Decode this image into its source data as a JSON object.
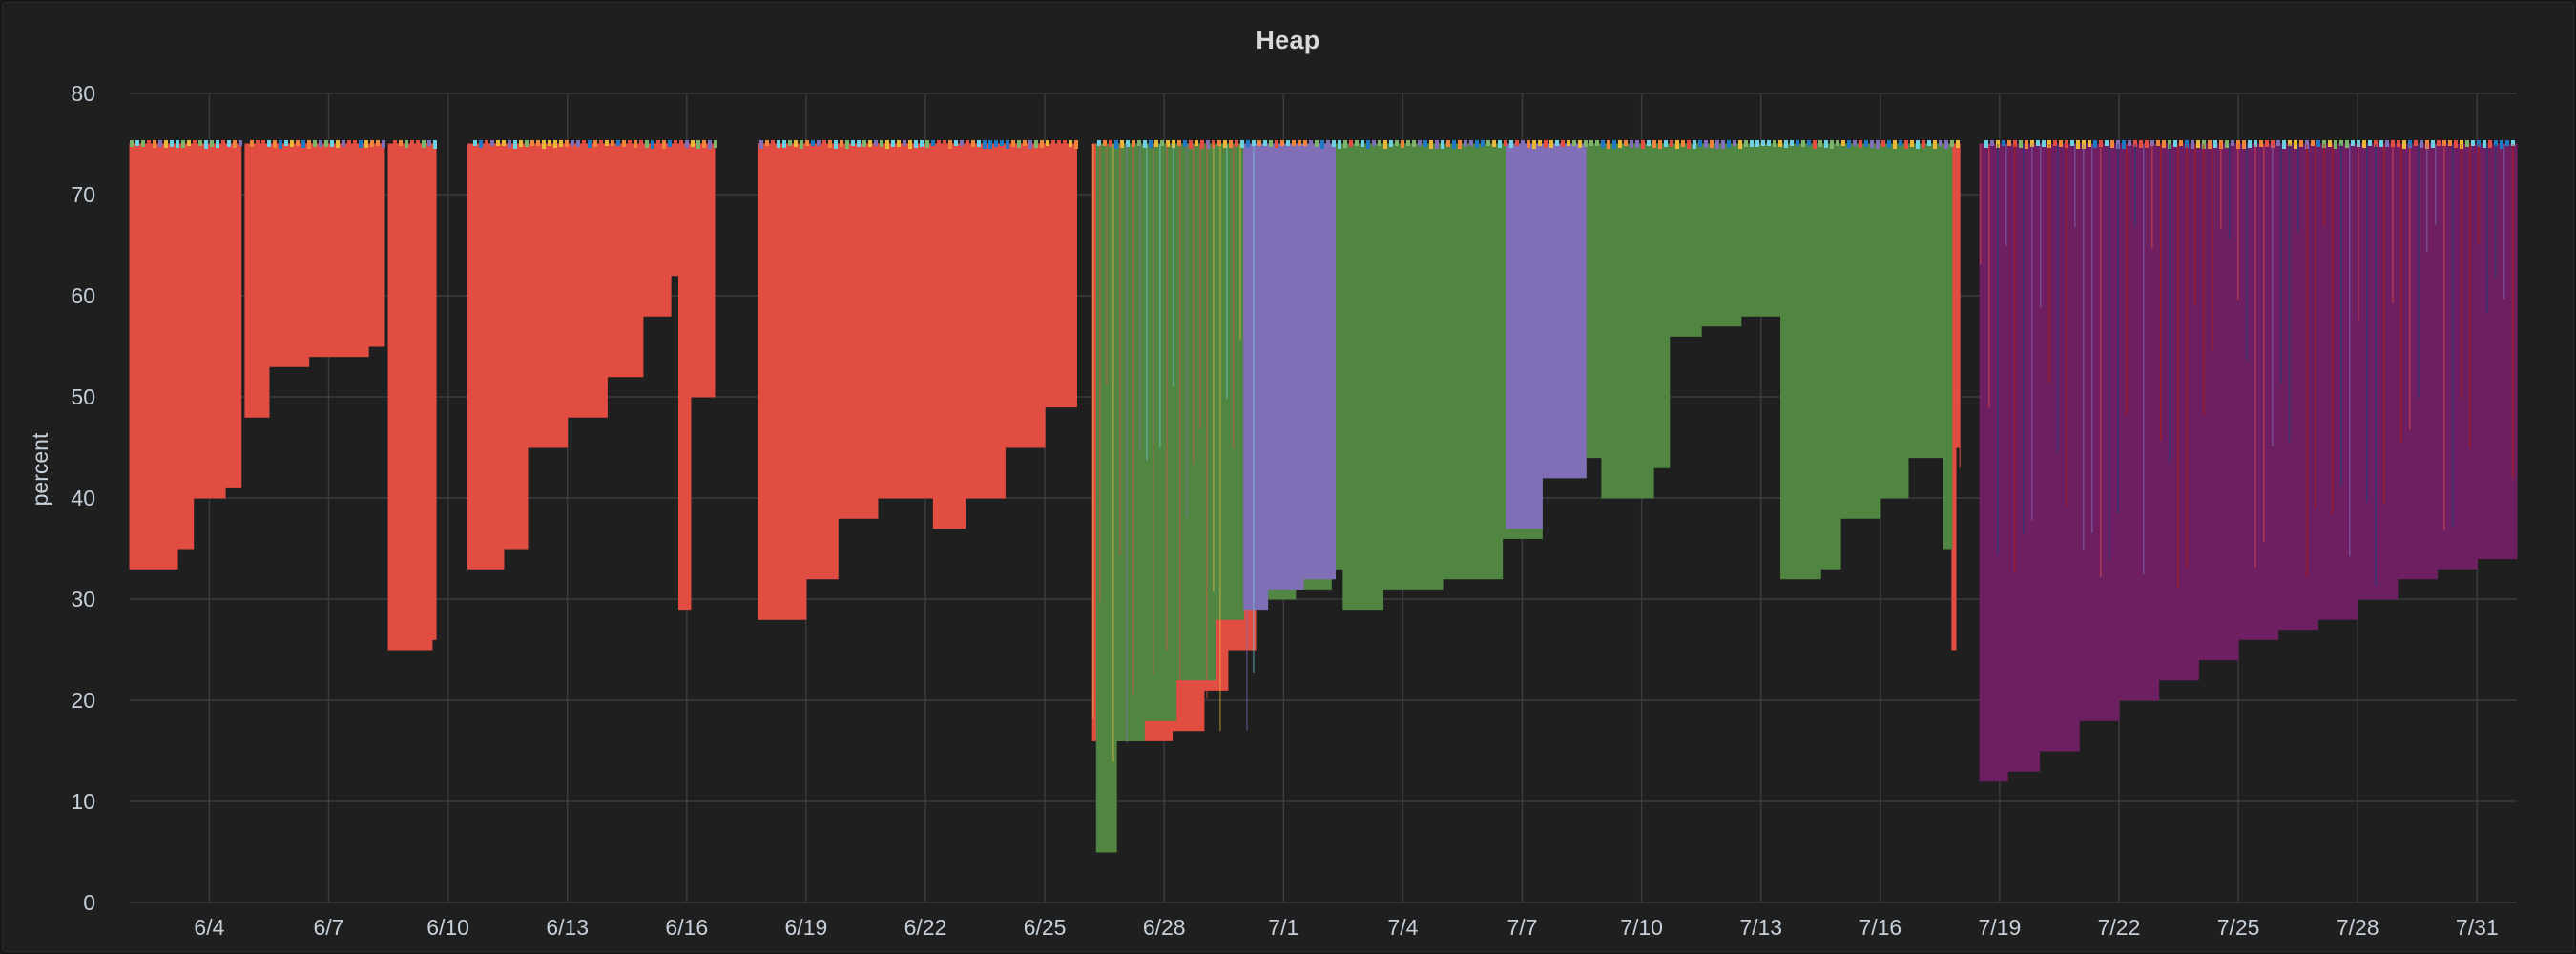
{
  "panel": {
    "title": "Heap"
  },
  "colors": {
    "background": "#1f1f20",
    "grid": "#3b3b3e",
    "text": "#c7d0d9",
    "red": "#e24d42",
    "green": "#508642",
    "purple": "#6d1f62",
    "violet": "#806eb7",
    "cyan": "#6ed0e0",
    "yellow": "#eab839",
    "orange": "#ef843c",
    "lightgreen": "#7eb26d",
    "blue": "#1f78c1",
    "darkblue": "#0a437c",
    "darkred": "#bf1b00"
  },
  "chart_data": {
    "type": "area",
    "title": "Heap",
    "xlabel": "",
    "ylabel": "percent",
    "ylim": [
      0,
      80
    ],
    "xlim": [
      "6/2",
      "8/1"
    ],
    "y_ticks": [
      0,
      10,
      20,
      30,
      40,
      50,
      60,
      70,
      80
    ],
    "x_ticks": [
      "6/4",
      "6/7",
      "6/10",
      "6/13",
      "6/16",
      "6/19",
      "6/22",
      "6/25",
      "6/28",
      "7/1",
      "7/4",
      "7/7",
      "7/10",
      "7/13",
      "7/16",
      "7/19",
      "7/22",
      "7/25",
      "7/28",
      "7/31"
    ],
    "grid": true,
    "legend": "none",
    "top_value": 75,
    "series": [
      {
        "color_key": "red",
        "segments": [
          {
            "points": [
              [
                "6/2.0",
                33
              ],
              [
                "6/3.2",
                35
              ],
              [
                "6/3.6",
                40
              ],
              [
                "6/4.4",
                41
              ],
              [
                "6/4.8",
                48
              ]
            ]
          },
          {
            "points": [
              [
                "6/4.9",
                48
              ],
              [
                "6/5.5",
                53
              ],
              [
                "6/6.5",
                54
              ],
              [
                "6/8.0",
                55
              ],
              [
                "6/8.4",
                55
              ]
            ]
          },
          {
            "points": [
              [
                "6/8.5",
                25
              ],
              [
                "6/9.6",
                26
              ],
              [
                "6/9.7",
                70
              ]
            ]
          },
          {
            "points": [
              [
                "6/10.5",
                33
              ],
              [
                "6/11.4",
                35
              ],
              [
                "6/12.0",
                45
              ],
              [
                "6/13.0",
                48
              ],
              [
                "6/14.0",
                52
              ],
              [
                "6/14.9",
                58
              ],
              [
                "6/15.6",
                62
              ],
              [
                "6/15.8",
                29
              ],
              [
                "6/16.1",
                50
              ],
              [
                "6/16.7",
                60
              ]
            ]
          },
          {
            "points": [
              [
                "6/17.8",
                28
              ],
              [
                "6/19.0",
                32
              ],
              [
                "6/19.8",
                38
              ],
              [
                "6/20.8",
                40
              ],
              [
                "6/21.7",
                40
              ],
              [
                "6/22.2",
                37
              ],
              [
                "6/23.0",
                40
              ],
              [
                "6/24.0",
                45
              ],
              [
                "6/25.0",
                49
              ],
              [
                "6/25.8",
                52
              ]
            ]
          },
          {
            "points": [
              [
                "6/26.2",
                16
              ],
              [
                "6/27.2",
                16
              ],
              [
                "6/28.2",
                17
              ],
              [
                "6/29.0",
                21
              ],
              [
                "6/29.6",
                25
              ],
              [
                "6/30.3",
                29
              ]
            ]
          },
          {
            "points": [
              [
                "7/17.8",
                25
              ],
              [
                "7/17.9",
                45
              ],
              [
                "7/18.0",
                43
              ]
            ]
          }
        ]
      },
      {
        "color_key": "green",
        "segments": [
          {
            "points": [
              [
                "6/26.3",
                5
              ],
              [
                "6/26.8",
                16
              ],
              [
                "6/27.5",
                18
              ],
              [
                "6/28.3",
                22
              ],
              [
                "6/29.3",
                28
              ],
              [
                "6/30.0",
                30
              ],
              [
                "7/1.3",
                31
              ],
              [
                "7/2.2",
                33
              ],
              [
                "7/2.5",
                29
              ],
              [
                "7/3.5",
                31
              ],
              [
                "7/5.0",
                32
              ],
              [
                "7/6.5",
                36
              ],
              [
                "7/7.5",
                42
              ],
              [
                "7/8.6",
                44
              ],
              [
                "7/9.0",
                40
              ],
              [
                "7/10.3",
                43
              ],
              [
                "7/10.7",
                56
              ],
              [
                "7/11.5",
                57
              ],
              [
                "7/12.5",
                58
              ],
              [
                "7/13.3",
                58
              ],
              [
                "7/13.5",
                32
              ],
              [
                "7/14.5",
                33
              ],
              [
                "7/15.0",
                38
              ],
              [
                "7/16.0",
                40
              ],
              [
                "7/16.7",
                44
              ],
              [
                "7/17.4",
                44
              ],
              [
                "7/17.6",
                35
              ],
              [
                "7/17.8",
                60
              ]
            ]
          }
        ]
      },
      {
        "color_key": "violet",
        "segments": [
          {
            "points": [
              [
                "6/30.0",
                29
              ],
              [
                "6/30.6",
                31
              ],
              [
                "7/1.5",
                32
              ],
              [
                "7/2.3",
                33
              ]
            ]
          },
          {
            "points": [
              [
                "7/6.6",
                37
              ],
              [
                "7/7.5",
                42
              ],
              [
                "7/8.6",
                44
              ]
            ]
          }
        ]
      },
      {
        "color_key": "purple",
        "segments": [
          {
            "points": [
              [
                "7/18.5",
                12
              ],
              [
                "7/19.2",
                13
              ],
              [
                "7/20.0",
                15
              ],
              [
                "7/21.0",
                18
              ],
              [
                "7/22.0",
                20
              ],
              [
                "7/23.0",
                22
              ],
              [
                "7/24.0",
                24
              ],
              [
                "7/25.0",
                26
              ],
              [
                "7/26.0",
                27
              ],
              [
                "7/27.0",
                28
              ],
              [
                "7/28.0",
                30
              ],
              [
                "7/29.0",
                32
              ],
              [
                "7/30.0",
                33
              ],
              [
                "7/31.0",
                34
              ],
              [
                "8/1.0",
                36
              ]
            ]
          }
        ]
      }
    ]
  }
}
